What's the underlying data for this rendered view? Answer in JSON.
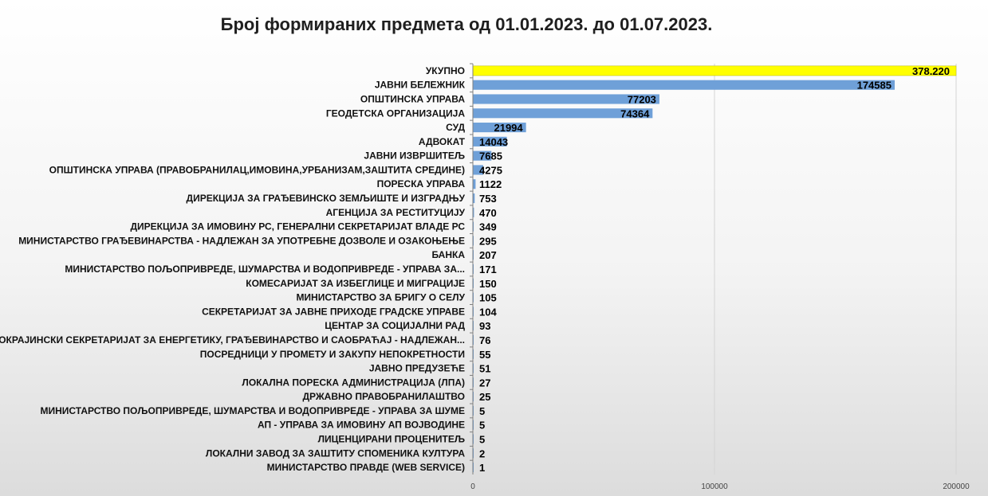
{
  "colors": {
    "bar": "#6fa0d8",
    "highlight_bar": "#ffff00",
    "gridline": "#d4d4d4",
    "axis": "#7f7f7f"
  },
  "chart_data": {
    "type": "bar",
    "orientation": "horizontal",
    "title": "Број формираних предмета од 01.01.2023. до 01.07.2023.",
    "xlim": [
      0,
      200000
    ],
    "x_ticks": [
      0,
      100000,
      200000
    ],
    "x_tick_labels": [
      "0",
      "100000",
      "200000"
    ],
    "grid": true,
    "legend": "none",
    "categories": [
      "УКУПНО",
      "ЈАВНИ БЕЛЕЖНИК",
      "ОПШТИНСКА УПРАВА",
      "ГЕОДЕТСКА ОРГАНИЗАЦИЈА",
      "СУД",
      "АДВОКАТ",
      "ЈАВНИ ИЗВРШИТЕЉ",
      "ОПШТИНСКА УПРАВА (ПРАВОБРАНИЛАЦ,ИМОВИНА,УРБАНИЗАМ,ЗАШТИТА СРЕДИНЕ)",
      "ПОРЕСКА УПРАВА",
      "ДИРЕКЦИЈА ЗА ГРАЂЕВИНСКО ЗЕМЉИШТЕ И ИЗГРАДЊУ",
      "АГЕНЦИЈА ЗА РЕСТИТУЦИЈУ",
      "ДИРЕКЦИЈА ЗА ИМОВИНУ РС, ГЕНЕРАЛНИ СЕКРЕТАРИЈАТ ВЛАДЕ РС",
      "МИНИСТАРСТВО ГРАЂЕВИНАРСТВА - НАДЛЕЖАН ЗА УПОТРЕБНЕ ДОЗВОЛЕ И ОЗАКОЊЕЊЕ",
      "БАНКА",
      "МИНИСТАРСТВО ПОЉОПРИВРЕДЕ, ШУМАРСТВА И ВОДОПРИВРЕДЕ - УПРАВА ЗА...",
      "КОМЕСАРИЈАТ ЗА ИЗБЕГЛИЦЕ И МИГРАЦИЈЕ",
      "МИНИСТАРСТВО ЗА БРИГУ О СЕЛУ",
      "СЕКРЕТАРИЈАТ ЗА ЈАВНЕ ПРИХОДЕ ГРАДСКЕ УПРАВЕ",
      "ЦЕНТАР ЗА СОЦИЈАЛНИ РАД",
      "ПОКРАЈИНСКИ СЕКРЕТАРИЈАТ ЗА ЕНЕРГЕТИКУ, ГРАЂЕВИНАРСТВО И САОБРАЋАЈ - НАДЛЕЖАН...",
      "ПОСРЕДНИЦИ У ПРОМЕТУ И ЗАКУПУ НЕПОКРЕТНОСТИ",
      "ЈАВНО ПРЕДУЗЕЋЕ",
      "ЛОКАЛНА ПОРЕСКА АДМИНИСТРАЦИЈА (ЛПА)",
      "ДРЖАВНО ПРАВОБРАНИЛАШТВО",
      "МИНИСТАРСТВО ПОЉОПРИВРЕДЕ, ШУМАРСТВА И ВОДОПРИВРЕДЕ - УПРАВА ЗА ШУМЕ",
      "АП - УПРАВА ЗА ИМОВИНУ АП ВОЈВОДИНЕ",
      "ЛИЦЕНЦИРАНИ ПРОЦЕНИТЕЉ",
      "ЛОКАЛНИ ЗАВОД ЗА ЗАШТИТУ СПОМЕНИКА КУЛТУРА",
      "МИНИСТАРСТВО ПРАВДЕ (WEB SERVICE)"
    ],
    "values": [
      378220,
      174585,
      77203,
      74364,
      21994,
      14043,
      7685,
      4275,
      1122,
      753,
      470,
      349,
      295,
      207,
      171,
      150,
      105,
      104,
      93,
      76,
      55,
      51,
      27,
      25,
      5,
      5,
      5,
      2,
      1
    ],
    "value_labels": [
      "378.220",
      "174585",
      "77203",
      "74364",
      "21994",
      "14043",
      "7685",
      "4275",
      "1122",
      "753",
      "470",
      "349",
      "295",
      "207",
      "171",
      "150",
      "105",
      "104",
      "93",
      "76",
      "55",
      "51",
      "27",
      "25",
      "5",
      "5",
      "5",
      "2",
      "1"
    ],
    "highlighted_categories": [
      "УКУПНО"
    ]
  }
}
